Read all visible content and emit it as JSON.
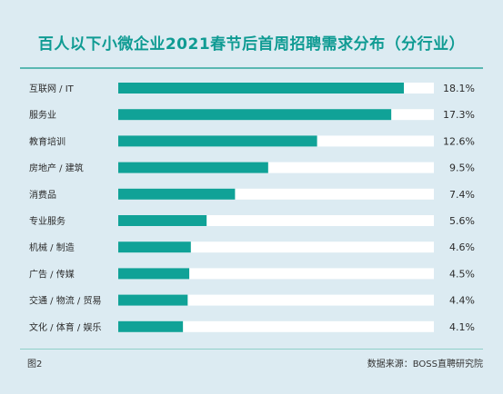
{
  "chart_data": {
    "type": "bar",
    "orientation": "horizontal",
    "title": "百人以下小微企业2021春节后首周招聘需求分布（分行业）",
    "categories": [
      "互联网 / IT",
      "服务业",
      "教育培训",
      "房地产 / 建筑",
      "消费品",
      "专业服务",
      "机械 / 制造",
      "广告 / 传媒",
      "交通 / 物流 / 贸易",
      "文化 / 体育 / 娱乐"
    ],
    "values": [
      18.1,
      17.3,
      12.6,
      9.5,
      7.4,
      5.6,
      4.6,
      4.5,
      4.4,
      4.1
    ],
    "value_labels": [
      "18.1%",
      "17.3%",
      "12.6%",
      "9.5%",
      "7.4%",
      "5.6%",
      "4.6%",
      "4.5%",
      "4.4%",
      "4.1%"
    ],
    "xlim": [
      0,
      20
    ],
    "bar_color": "#10a297",
    "track_color": "#ffffff",
    "grid": false
  },
  "footer": {
    "figure_label": "图2",
    "source": "数据来源：BOSS直聘研究院"
  },
  "colors": {
    "title": "#0f9b93",
    "background": "#dcebf2"
  }
}
